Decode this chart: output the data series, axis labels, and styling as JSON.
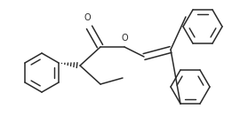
{
  "bg_color": "#ffffff",
  "line_color": "#2a2a2a",
  "line_width": 1.1,
  "figsize": [
    2.61,
    1.58
  ],
  "dpi": 100,
  "xlim": [
    0,
    261
  ],
  "ylim": [
    0,
    158
  ]
}
